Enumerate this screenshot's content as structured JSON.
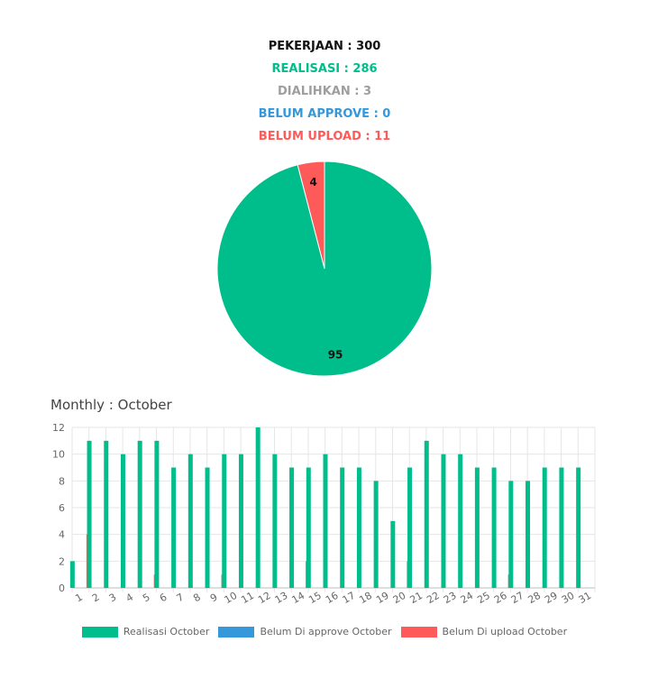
{
  "summary": {
    "pekerjaan": "PEKERJAAN : 300",
    "realisasi": "REALISASI : 286",
    "dialihkan": "DIALIHKAN : 3",
    "belum_approve": "BELUM APPROVE : 0",
    "belum_upload": "BELUM UPLOAD : 11"
  },
  "colors": {
    "black": "#111111",
    "green": "#00be8c",
    "gray": "#9e9e9e",
    "blue": "#3498db",
    "red": "#ff5a5a"
  },
  "monthly_title": "Monthly : October",
  "chart_data": [
    {
      "type": "pie",
      "slices": [
        {
          "label": "95",
          "value": 95,
          "color": "#00be8c"
        },
        {
          "label": "4",
          "value": 4,
          "color": "#ff5a5a"
        }
      ]
    },
    {
      "type": "bar",
      "title": "Monthly : October",
      "categories": [
        "1",
        "2",
        "3",
        "4",
        "5",
        "6",
        "7",
        "8",
        "9",
        "10",
        "11",
        "12",
        "13",
        "14",
        "15",
        "16",
        "17",
        "18",
        "19",
        "20",
        "21",
        "22",
        "23",
        "24",
        "25",
        "26",
        "27",
        "28",
        "29",
        "30",
        "31"
      ],
      "ylim": [
        0,
        12
      ],
      "yticks": [
        0,
        2,
        4,
        6,
        8,
        10,
        12
      ],
      "grid": true,
      "legend": "bottom",
      "series": [
        {
          "name": "Realisasi October",
          "color": "#00be8c",
          "values": [
            2,
            11,
            11,
            10,
            11,
            11,
            9,
            10,
            9,
            10,
            10,
            12,
            10,
            9,
            9,
            10,
            9,
            9,
            8,
            5,
            9,
            11,
            10,
            10,
            9,
            9,
            8,
            8,
            9,
            9,
            9
          ]
        },
        {
          "name": "Belum Di approve October",
          "color": "#3498db",
          "values": [
            0,
            0,
            0,
            0,
            0,
            0,
            0,
            0,
            0,
            0,
            0,
            0,
            0,
            0,
            0,
            0,
            0,
            0,
            0,
            0,
            0,
            0,
            0,
            0,
            0,
            0,
            0,
            0,
            0,
            0,
            0
          ]
        },
        {
          "name": "Belum Di upload October",
          "color": "#ff5a5a",
          "values": [
            4,
            0,
            0,
            0,
            1,
            0,
            0,
            0,
            1,
            0,
            0,
            0,
            0,
            2,
            0,
            0,
            0,
            0,
            0,
            2,
            0,
            0,
            0,
            0,
            0,
            1,
            0,
            0,
            0,
            0,
            0
          ]
        }
      ]
    }
  ]
}
